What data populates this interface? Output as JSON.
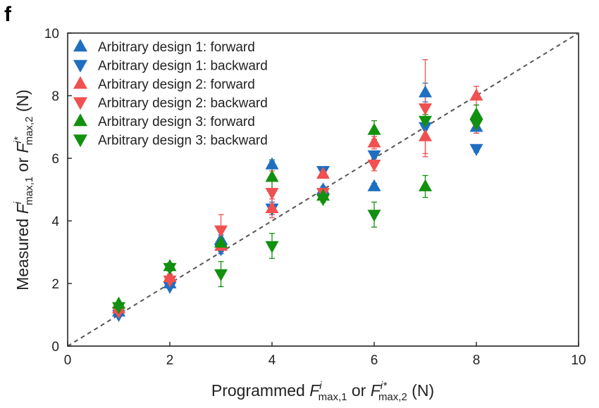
{
  "panel_label": "f",
  "chart_data": {
    "type": "scatter",
    "xlabel": "Programmed F^i_max,1 or F^i*_max,2 (N)",
    "ylabel": "Measured F^i_max,1 or F^i*_max,2 (N)",
    "xlabel_parts": {
      "prefix": "Programmed ",
      "F": "F",
      "sup1": "i",
      "sub1": "max,1",
      "mid": " or ",
      "sup2": "i*",
      "sub2": "max,2",
      "suffix": " (N)"
    },
    "ylabel_parts": {
      "prefix": "Measured ",
      "F": "F",
      "sup1": "i",
      "sub1": "max,1",
      "mid": " or ",
      "sup2": "i*",
      "sub2": "max,2",
      "suffix": " (N)"
    },
    "xlim": [
      0,
      10
    ],
    "ylim": [
      0,
      10
    ],
    "xticks": [
      "0",
      "2",
      "4",
      "6",
      "8",
      "10"
    ],
    "yticks": [
      "0",
      "2",
      "4",
      "6",
      "8",
      "10"
    ],
    "grid": false,
    "reference_line": {
      "style": "dashed",
      "from": [
        0,
        0
      ],
      "to": [
        10,
        10
      ],
      "color": "#555555"
    },
    "legend_position": "top-left",
    "series": [
      {
        "name": "Arbitrary design 1: forward",
        "marker": "triangle-up",
        "color": "#1f6fc1",
        "points": [
          {
            "x": 1,
            "y": 1.1,
            "err": 0.05
          },
          {
            "x": 2,
            "y": 2.0,
            "err": 0.05
          },
          {
            "x": 3,
            "y": 3.4,
            "err": 0.15
          },
          {
            "x": 4,
            "y": 5.8,
            "err": 0.1
          },
          {
            "x": 5,
            "y": 5.0,
            "err": 0.1
          },
          {
            "x": 6,
            "y": 5.1,
            "err": 0.1
          },
          {
            "x": 7,
            "y": 8.1,
            "err": 0.3
          },
          {
            "x": 8,
            "y": 7.0,
            "err": 0.2
          }
        ]
      },
      {
        "name": "Arbitrary design 1: backward",
        "marker": "triangle-down",
        "color": "#1f6fc1",
        "points": [
          {
            "x": 1,
            "y": 1.0,
            "err": 0.05
          },
          {
            "x": 2,
            "y": 1.9,
            "err": 0.05
          },
          {
            "x": 3,
            "y": 3.1,
            "err": 0.15
          },
          {
            "x": 4,
            "y": 4.4,
            "err": 0.2
          },
          {
            "x": 5,
            "y": 5.6,
            "err": 0.1
          },
          {
            "x": 6,
            "y": 6.1,
            "err": 0.1
          },
          {
            "x": 7,
            "y": 7.0,
            "err": 0.3
          },
          {
            "x": 8,
            "y": 6.3,
            "err": 0.1
          }
        ]
      },
      {
        "name": "Arbitrary design 2: forward",
        "marker": "triangle-up",
        "color": "#f05050",
        "points": [
          {
            "x": 1,
            "y": 1.2,
            "err": 0.05
          },
          {
            "x": 2,
            "y": 2.2,
            "err": 0.1
          },
          {
            "x": 3,
            "y": 3.2,
            "err": 0.2
          },
          {
            "x": 4,
            "y": 4.4,
            "err": 0.3
          },
          {
            "x": 5,
            "y": 5.5,
            "err": 0.1
          },
          {
            "x": 6,
            "y": 6.5,
            "err": 0.2
          },
          {
            "x": 7,
            "y": 6.7,
            "err": 0.55
          },
          {
            "x": 8,
            "y": 8.0,
            "err": 0.3
          }
        ]
      },
      {
        "name": "Arbitrary design 2: backward",
        "marker": "triangle-down",
        "color": "#f05050",
        "points": [
          {
            "x": 1,
            "y": 1.1,
            "err": 0.05
          },
          {
            "x": 2,
            "y": 2.1,
            "err": 0.1
          },
          {
            "x": 3,
            "y": 3.7,
            "err": 0.5
          },
          {
            "x": 4,
            "y": 4.9,
            "err": 0.7
          },
          {
            "x": 5,
            "y": 4.9,
            "err": 0.1
          },
          {
            "x": 6,
            "y": 5.8,
            "err": 0.2
          },
          {
            "x": 7,
            "y": 7.6,
            "err": 1.55
          },
          {
            "x": 8,
            "y": 7.1,
            "err": 0.3
          }
        ]
      },
      {
        "name": "Arbitrary design 3: forward",
        "marker": "triangle-up",
        "color": "#12900f",
        "points": [
          {
            "x": 1,
            "y": 1.35,
            "err": 0.05
          },
          {
            "x": 2,
            "y": 2.55,
            "err": 0.1
          },
          {
            "x": 3,
            "y": 3.3,
            "err": 0.15
          },
          {
            "x": 4,
            "y": 5.4,
            "err": 0.55
          },
          {
            "x": 5,
            "y": 4.8,
            "err": 0.1
          },
          {
            "x": 6,
            "y": 6.9,
            "err": 0.3
          },
          {
            "x": 7,
            "y": 5.1,
            "err": 0.35
          },
          {
            "x": 8,
            "y": 7.4,
            "err": 0.3
          }
        ]
      },
      {
        "name": "Arbitrary design 3: backward",
        "marker": "triangle-down",
        "color": "#12900f",
        "points": [
          {
            "x": 1,
            "y": 1.25,
            "err": 0.05
          },
          {
            "x": 2,
            "y": 2.5,
            "err": 0.1
          },
          {
            "x": 3,
            "y": 2.3,
            "err": 0.4
          },
          {
            "x": 4,
            "y": 3.2,
            "err": 0.4
          },
          {
            "x": 5,
            "y": 4.7,
            "err": 0.1
          },
          {
            "x": 6,
            "y": 4.2,
            "err": 0.4
          },
          {
            "x": 7,
            "y": 7.2,
            "err": 0.2
          },
          {
            "x": 8,
            "y": 7.1,
            "err": 0.2
          }
        ]
      }
    ]
  }
}
